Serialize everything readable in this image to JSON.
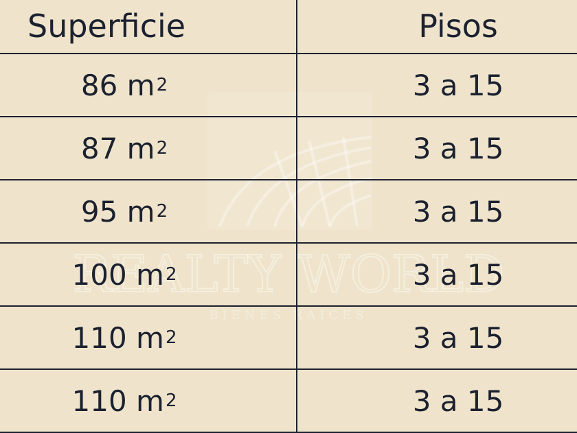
{
  "table": {
    "headers": [
      "Superficie",
      "Pisos"
    ],
    "unit": "m",
    "unit_exponent": "2",
    "rows": [
      {
        "superficie": "86",
        "pisos": "3 a 15"
      },
      {
        "superficie": "87",
        "pisos": "3 a 15"
      },
      {
        "superficie": "95",
        "pisos": "3 a 15"
      },
      {
        "superficie": "100",
        "pisos": "3 a 15"
      },
      {
        "superficie": "110",
        "pisos": "3 a 15"
      },
      {
        "superficie": "110",
        "pisos": "3 a 15"
      }
    ]
  },
  "watermark": {
    "brand": "REALTY WORLD",
    "tagline": "BIENES RAICES"
  },
  "colors": {
    "background": "#efe4cb",
    "text": "#1c2130"
  }
}
